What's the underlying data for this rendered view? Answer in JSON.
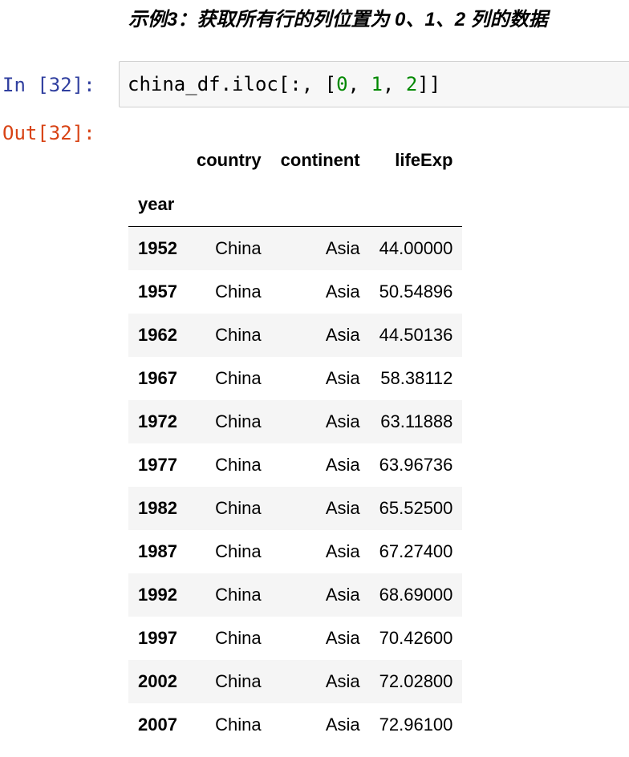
{
  "heading": "示例3：获取所有行的列位置为 0、1、2 列的数据",
  "cell": {
    "in_prompt": "In [32]:",
    "out_prompt": "Out[32]:",
    "code": {
      "prefix": "china_df.iloc[:, [",
      "n0": "0",
      "sep1": ", ",
      "n1": "1",
      "sep2": ", ",
      "n2": "2",
      "suffix": "]]"
    }
  },
  "dataframe": {
    "index_name": "year",
    "columns": [
      "country",
      "continent",
      "lifeExp"
    ],
    "rows": [
      {
        "year": "1952",
        "country": "China",
        "continent": "Asia",
        "lifeExp": "44.00000"
      },
      {
        "year": "1957",
        "country": "China",
        "continent": "Asia",
        "lifeExp": "50.54896"
      },
      {
        "year": "1962",
        "country": "China",
        "continent": "Asia",
        "lifeExp": "44.50136"
      },
      {
        "year": "1967",
        "country": "China",
        "continent": "Asia",
        "lifeExp": "58.38112"
      },
      {
        "year": "1972",
        "country": "China",
        "continent": "Asia",
        "lifeExp": "63.11888"
      },
      {
        "year": "1977",
        "country": "China",
        "continent": "Asia",
        "lifeExp": "63.96736"
      },
      {
        "year": "1982",
        "country": "China",
        "continent": "Asia",
        "lifeExp": "65.52500"
      },
      {
        "year": "1987",
        "country": "China",
        "continent": "Asia",
        "lifeExp": "67.27400"
      },
      {
        "year": "1992",
        "country": "China",
        "continent": "Asia",
        "lifeExp": "68.69000"
      },
      {
        "year": "1997",
        "country": "China",
        "continent": "Asia",
        "lifeExp": "70.42600"
      },
      {
        "year": "2002",
        "country": "China",
        "continent": "Asia",
        "lifeExp": "72.02800"
      },
      {
        "year": "2007",
        "country": "China",
        "continent": "Asia",
        "lifeExp": "72.96100"
      }
    ]
  },
  "colors": {
    "in_prompt": "#303f9f",
    "out_prompt": "#d84315",
    "code_number": "#008800",
    "cell_background": "#f7f7f7",
    "row_stripe": "#f5f5f5"
  }
}
